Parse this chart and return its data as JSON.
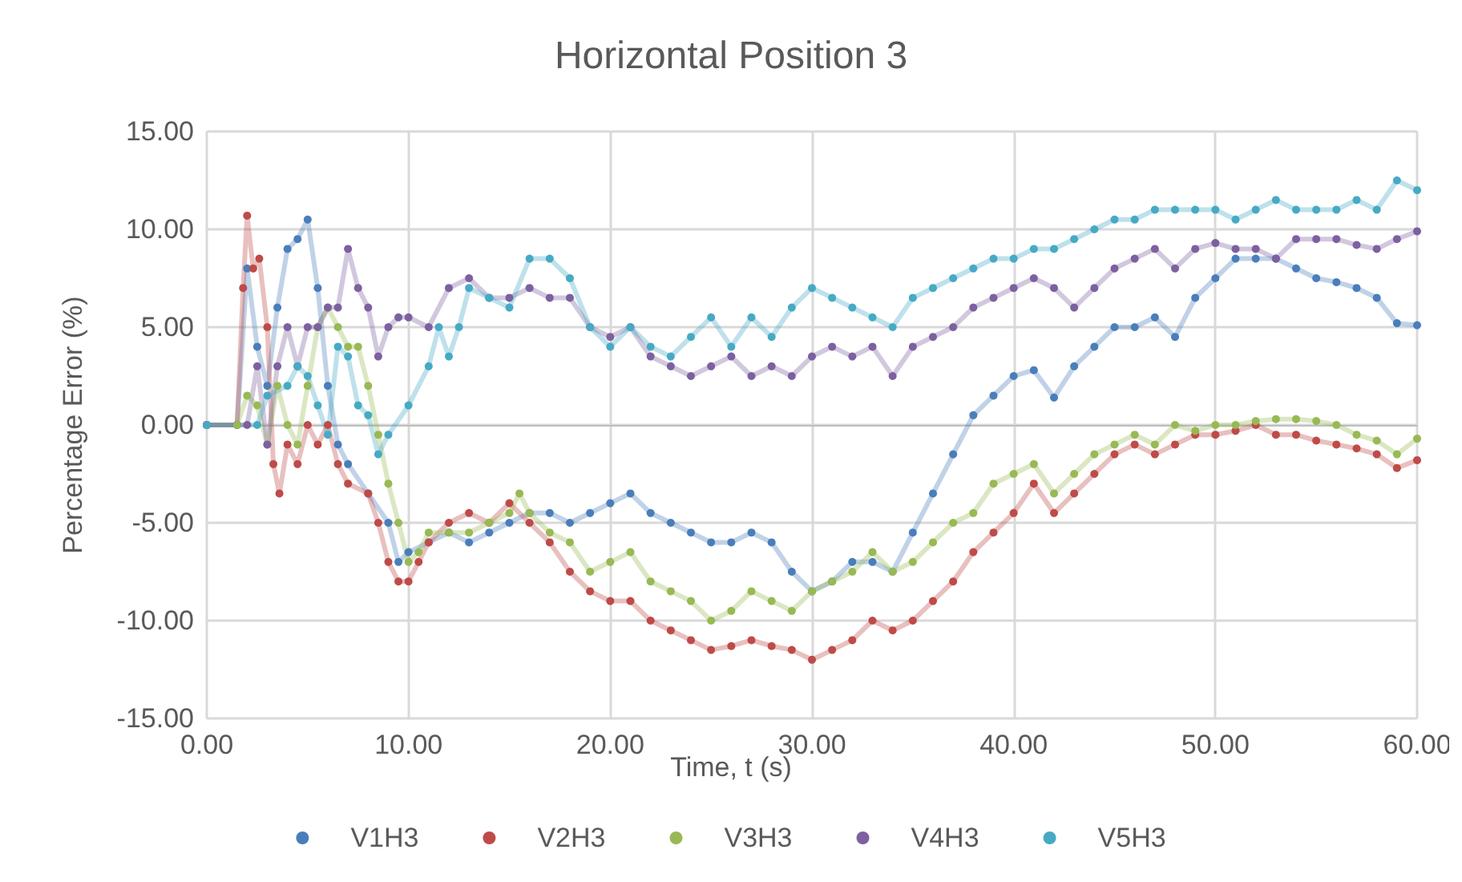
{
  "chart_data": {
    "type": "line",
    "title": "Horizontal Position 3",
    "xlabel": "Time, t (s)",
    "ylabel": "Percentage Error (%)",
    "xlim": [
      0,
      60
    ],
    "xticks": [
      {
        "value": 0,
        "label": "0.00"
      },
      {
        "value": 10,
        "label": "10.00"
      },
      {
        "value": 20,
        "label": "20.00"
      },
      {
        "value": 30,
        "label": "30.00"
      },
      {
        "value": 40,
        "label": "40.00"
      },
      {
        "value": 50,
        "label": "50.00"
      },
      {
        "value": 60,
        "label": "60.00"
      }
    ],
    "ylim": [
      -15,
      15
    ],
    "yticks": [
      {
        "value": -15,
        "label": "-15.00"
      },
      {
        "value": -10,
        "label": "-10.00"
      },
      {
        "value": -5,
        "label": "-5.00"
      },
      {
        "value": 0,
        "label": "0.00"
      },
      {
        "value": 5,
        "label": "5.00"
      },
      {
        "value": 10,
        "label": "10.00"
      },
      {
        "value": 15,
        "label": "15.00"
      }
    ],
    "grid": true,
    "legend": "bottom",
    "marker": "circle",
    "line_style": "solid",
    "series": [
      {
        "name": "V1H3",
        "color": "#4a7ebb",
        "x": [
          0,
          1.5,
          2,
          2.5,
          3,
          3.5,
          4,
          4.5,
          5,
          5.5,
          6,
          6.5,
          7,
          8,
          9,
          9.5,
          10,
          11,
          12,
          13,
          14,
          15,
          16,
          17,
          18,
          19,
          20,
          21,
          22,
          23,
          24,
          25,
          26,
          27,
          28,
          29,
          30,
          31,
          32,
          33,
          34,
          35,
          36,
          37,
          38,
          39,
          40,
          41,
          42,
          43,
          44,
          45,
          46,
          47,
          48,
          49,
          50,
          51,
          52,
          53,
          54,
          55,
          56,
          57,
          58,
          59,
          60
        ],
        "values": [
          0,
          0,
          8,
          4,
          2,
          6,
          9,
          9.5,
          10.5,
          7,
          2,
          -1,
          -2,
          -3.5,
          -5,
          -7,
          -6.5,
          -6,
          -5.5,
          -6,
          -5.5,
          -5,
          -4.5,
          -4.5,
          -5,
          -4.5,
          -4,
          -3.5,
          -4.5,
          -5,
          -5.5,
          -6,
          -6,
          -5.5,
          -6,
          -7.5,
          -8.5,
          -8,
          -7,
          -7,
          -7.5,
          -5.5,
          -3.5,
          -1.5,
          0.5,
          1.5,
          2.5,
          2.8,
          1.4,
          3,
          4,
          5,
          5,
          5.5,
          4.5,
          6.5,
          7.5,
          8.5,
          8.5,
          8.5,
          8,
          7.5,
          7.3,
          7,
          6.5,
          5.2,
          5.1
        ]
      },
      {
        "name": "V2H3",
        "color": "#be4b48",
        "x": [
          0,
          1.5,
          1.8,
          2,
          2.3,
          2.6,
          3,
          3.3,
          3.6,
          4,
          4.5,
          5,
          5.5,
          6,
          6.5,
          7,
          8,
          8.5,
          9,
          9.5,
          10,
          10.5,
          11,
          12,
          13,
          14,
          15,
          16,
          17,
          18,
          19,
          20,
          21,
          22,
          23,
          24,
          25,
          26,
          27,
          28,
          29,
          30,
          31,
          32,
          33,
          34,
          35,
          36,
          37,
          38,
          39,
          40,
          41,
          42,
          43,
          44,
          45,
          46,
          47,
          48,
          49,
          50,
          51,
          52,
          53,
          54,
          55,
          56,
          57,
          58,
          59,
          60
        ],
        "values": [
          0,
          0,
          7,
          10.7,
          8,
          8.5,
          5,
          -2,
          -3.5,
          -1,
          -2,
          0,
          -1,
          0,
          -2,
          -3,
          -3.5,
          -5,
          -7,
          -8,
          -8,
          -7,
          -6,
          -5,
          -4.5,
          -5,
          -4,
          -5,
          -6,
          -7.5,
          -8.5,
          -9,
          -9,
          -10,
          -10.5,
          -11,
          -11.5,
          -11.3,
          -11,
          -11.3,
          -11.5,
          -12,
          -11.5,
          -11,
          -10,
          -10.5,
          -10,
          -9,
          -8,
          -6.5,
          -5.5,
          -4.5,
          -3,
          -4.5,
          -3.5,
          -2.5,
          -1.5,
          -1,
          -1.5,
          -1,
          -0.5,
          -0.5,
          -0.3,
          0,
          -0.5,
          -0.5,
          -0.8,
          -1,
          -1.2,
          -1.5,
          -2.2,
          -1.8
        ]
      },
      {
        "name": "V3H3",
        "color": "#98b954",
        "x": [
          0,
          1.5,
          2,
          2.5,
          3,
          3.5,
          4,
          4.5,
          5,
          5.5,
          6,
          6.5,
          7,
          7.5,
          8,
          8.5,
          9,
          9.5,
          10,
          10.5,
          11,
          12,
          13,
          14,
          15,
          15.5,
          16,
          17,
          18,
          19,
          20,
          21,
          22,
          23,
          24,
          25,
          26,
          27,
          28,
          29,
          30,
          31,
          32,
          33,
          34,
          35,
          36,
          37,
          38,
          39,
          40,
          41,
          42,
          43,
          44,
          45,
          46,
          47,
          48,
          49,
          50,
          51,
          52,
          53,
          54,
          55,
          56,
          57,
          58,
          59,
          60
        ],
        "values": [
          0,
          0,
          1.5,
          1,
          -1,
          2,
          0,
          -1,
          2,
          5,
          6,
          5,
          4,
          4,
          2,
          -0.5,
          -3,
          -5,
          -7,
          -6.5,
          -5.5,
          -5.5,
          -5.5,
          -5,
          -4.5,
          -3.5,
          -4.5,
          -5.5,
          -6,
          -7.5,
          -7,
          -6.5,
          -8,
          -8.5,
          -9,
          -10,
          -9.5,
          -8.5,
          -9,
          -9.5,
          -8.5,
          -8,
          -7.5,
          -6.5,
          -7.5,
          -7,
          -6,
          -5,
          -4.5,
          -3,
          -2.5,
          -2,
          -3.5,
          -2.5,
          -1.5,
          -1,
          -0.5,
          -1,
          0,
          -0.3,
          0,
          0,
          0.2,
          0.3,
          0.3,
          0.2,
          0,
          -0.5,
          -0.8,
          -1.5,
          -0.7
        ]
      },
      {
        "name": "V4H3",
        "color": "#7d60a0",
        "x": [
          0,
          2,
          2.5,
          3,
          3.5,
          4,
          4.5,
          5,
          5.5,
          6,
          6.5,
          7,
          7.5,
          8,
          8.5,
          9,
          9.5,
          10,
          11,
          12,
          13,
          14,
          15,
          16,
          17,
          18,
          19,
          20,
          21,
          22,
          23,
          24,
          25,
          26,
          27,
          28,
          29,
          30,
          31,
          32,
          33,
          34,
          35,
          36,
          37,
          38,
          39,
          40,
          41,
          42,
          43,
          44,
          45,
          46,
          47,
          48,
          49,
          50,
          51,
          52,
          53,
          54,
          55,
          56,
          57,
          58,
          59,
          60
        ],
        "values": [
          0,
          0,
          3,
          -1,
          3,
          5,
          3,
          5,
          5,
          6,
          6,
          9,
          7,
          6,
          3.5,
          5,
          5.5,
          5.5,
          5,
          7,
          7.5,
          6.5,
          6.5,
          7,
          6.5,
          6.5,
          5,
          4.5,
          5,
          3.5,
          3,
          2.5,
          3,
          3.5,
          2.5,
          3,
          2.5,
          3.5,
          4,
          3.5,
          4,
          2.5,
          4,
          4.5,
          5,
          6,
          6.5,
          7,
          7.5,
          7,
          6,
          7,
          8,
          8.5,
          9,
          8,
          9,
          9.3,
          9,
          9,
          8.5,
          9.5,
          9.5,
          9.5,
          9.2,
          9,
          9.5,
          9.9
        ]
      },
      {
        "name": "V5H3",
        "color": "#46aac5",
        "x": [
          0,
          2.5,
          3,
          4,
          4.5,
          5,
          5.5,
          6,
          6.5,
          7,
          7.5,
          8,
          8.5,
          9,
          10,
          11,
          11.5,
          12,
          12.5,
          13,
          14,
          15,
          16,
          17,
          18,
          19,
          20,
          21,
          22,
          23,
          24,
          25,
          26,
          27,
          28,
          29,
          30,
          31,
          32,
          33,
          34,
          35,
          36,
          37,
          38,
          39,
          40,
          41,
          42,
          43,
          44,
          45,
          46,
          47,
          48,
          49,
          50,
          51,
          52,
          53,
          54,
          55,
          56,
          57,
          58,
          59,
          60
        ],
        "values": [
          0,
          0,
          1.5,
          2,
          3,
          2.5,
          1,
          -0.5,
          4,
          3.5,
          1,
          0.5,
          -1.5,
          -0.5,
          1,
          3,
          5,
          3.5,
          5,
          7,
          6.5,
          6,
          8.5,
          8.5,
          7.5,
          5,
          4,
          5,
          4,
          3.5,
          4.5,
          5.5,
          4,
          5.5,
          4.5,
          6,
          7,
          6.5,
          6,
          5.5,
          5,
          6.5,
          7,
          7.5,
          8,
          8.5,
          8.5,
          9,
          9,
          9.5,
          10,
          10.5,
          10.5,
          11,
          11,
          11,
          11,
          10.5,
          11,
          11.5,
          11,
          11,
          11,
          11.5,
          11,
          12.5,
          12
        ]
      }
    ]
  }
}
